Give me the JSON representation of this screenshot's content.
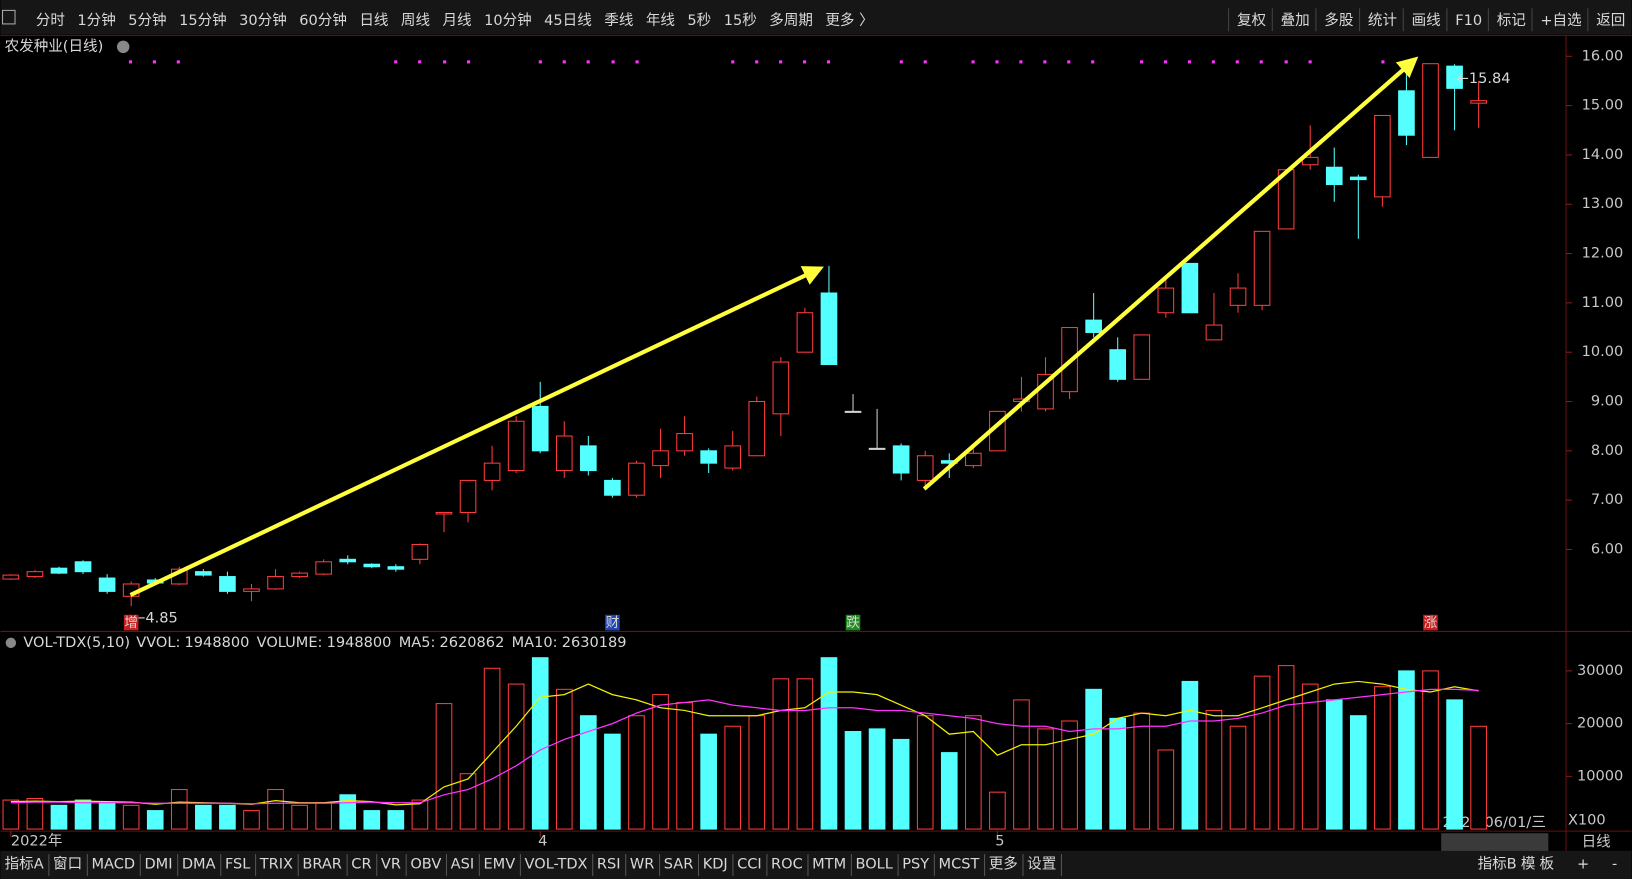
{
  "toolbar": {
    "left": [
      "分时",
      "1分钟",
      "5分钟",
      "15分钟",
      "30分钟",
      "60分钟",
      "日线",
      "周线",
      "月线",
      "10分钟",
      "45日线",
      "季线",
      "年线",
      "5秒",
      "15秒",
      "多周期",
      "更多 〉"
    ],
    "active": "日线",
    "right": [
      "复权",
      "叠加",
      "多股",
      "统计",
      "画线",
      "F10",
      "标记",
      "+自选",
      "返回"
    ]
  },
  "chart_data": [
    {
      "type": "candlestick",
      "title": "农发种业(日线)",
      "up_color": "#ff3c3c",
      "down_color": "#54ffff",
      "flat_color": "#d0d0d0",
      "categories": [
        "2022年",
        null,
        null,
        null,
        null,
        null,
        null,
        null,
        null,
        null,
        null,
        null,
        null,
        null,
        null,
        null,
        null,
        null,
        null,
        null,
        null,
        null,
        "4",
        null,
        null,
        null,
        null,
        null,
        null,
        null,
        null,
        null,
        null,
        null,
        null,
        null,
        null,
        null,
        null,
        null,
        null,
        "5",
        null,
        null,
        null,
        null,
        null,
        null,
        null,
        null,
        null,
        null,
        null,
        null,
        null,
        null,
        null,
        null,
        null,
        null,
        null,
        null
      ],
      "open": [
        5.4,
        5.45,
        5.62,
        5.75,
        5.42,
        5.05,
        5.38,
        5.3,
        5.55,
        5.45,
        5.15,
        5.2,
        5.45,
        5.5,
        5.8,
        5.7,
        5.65,
        5.8,
        6.72,
        6.75,
        7.4,
        7.6,
        8.9,
        7.6,
        8.1,
        7.4,
        7.1,
        7.7,
        8.0,
        8.0,
        7.65,
        7.9,
        8.75,
        10.0,
        11.2,
        8.8,
        8.05,
        8.1,
        7.4,
        7.8,
        7.7,
        8.0,
        9.0,
        8.85,
        9.2,
        10.65,
        10.05,
        9.45,
        10.8,
        11.8,
        10.25,
        10.95,
        10.95,
        12.5,
        13.8,
        13.75,
        13.55,
        13.15,
        15.3,
        13.95,
        15.8,
        15.05
      ],
      "high": [
        5.5,
        5.58,
        5.65,
        5.78,
        5.5,
        5.35,
        5.42,
        5.65,
        5.6,
        5.55,
        5.3,
        5.6,
        5.55,
        5.8,
        5.88,
        5.72,
        5.7,
        6.12,
        6.75,
        7.4,
        8.1,
        8.7,
        9.4,
        8.6,
        8.3,
        7.45,
        7.8,
        8.45,
        8.7,
        8.05,
        8.4,
        9.1,
        9.9,
        10.9,
        11.75,
        9.15,
        8.85,
        8.15,
        8.0,
        7.95,
        8.05,
        8.8,
        9.5,
        9.9,
        10.5,
        11.2,
        10.3,
        10.35,
        11.5,
        11.8,
        11.2,
        11.6,
        12.45,
        13.7,
        14.6,
        14.15,
        13.6,
        14.8,
        15.85,
        15.84,
        15.84,
        15.5
      ],
      "low": [
        5.38,
        5.42,
        5.5,
        5.5,
        5.1,
        4.85,
        5.28,
        5.28,
        5.45,
        5.1,
        4.95,
        5.18,
        5.42,
        5.48,
        5.7,
        5.62,
        5.55,
        5.7,
        6.35,
        6.55,
        7.2,
        7.55,
        7.95,
        7.45,
        7.5,
        7.05,
        7.05,
        7.45,
        7.9,
        7.55,
        7.6,
        7.9,
        8.3,
        10.0,
        9.75,
        8.8,
        8.05,
        7.4,
        7.2,
        7.45,
        7.65,
        8.0,
        8.8,
        8.8,
        9.05,
        10.3,
        9.4,
        9.45,
        10.7,
        10.8,
        10.25,
        10.8,
        10.85,
        12.5,
        13.7,
        13.05,
        12.3,
        12.95,
        14.2,
        13.95,
        14.5,
        14.55
      ],
      "close": [
        5.48,
        5.55,
        5.52,
        5.55,
        5.15,
        5.3,
        5.32,
        5.6,
        5.48,
        5.15,
        5.2,
        5.45,
        5.52,
        5.75,
        5.75,
        5.65,
        5.6,
        6.1,
        6.75,
        7.4,
        7.75,
        8.6,
        8.0,
        8.3,
        7.6,
        7.1,
        7.75,
        8.0,
        8.35,
        7.75,
        8.1,
        9.0,
        9.8,
        10.8,
        9.75,
        8.8,
        8.05,
        7.55,
        7.9,
        7.75,
        7.95,
        8.8,
        9.05,
        9.55,
        10.5,
        10.4,
        9.45,
        10.35,
        11.3,
        10.8,
        10.55,
        11.3,
        12.45,
        13.7,
        13.95,
        13.4,
        13.5,
        14.8,
        14.4,
        15.85,
        15.35,
        15.1
      ],
      "ylim": [
        4.38,
        16.34
      ],
      "yticks": [
        {
          "value": 6,
          "label": "6.00"
        },
        {
          "value": 7,
          "label": "7.00"
        },
        {
          "value": 8,
          "label": "8.00"
        },
        {
          "value": 9,
          "label": "9.00"
        },
        {
          "value": 10,
          "label": "10.00"
        },
        {
          "value": 11,
          "label": "11.00"
        },
        {
          "value": 12,
          "label": "12.00"
        },
        {
          "value": 13,
          "label": "13.00"
        },
        {
          "value": 14,
          "label": "14.00"
        },
        {
          "value": 15,
          "label": "15.00"
        },
        {
          "value": 16,
          "label": "16.00"
        }
      ],
      "annotations": [
        {
          "index": 5,
          "value": 4.85,
          "label": "←4.85"
        },
        {
          "index": 60,
          "value": 15.84,
          "label": "←15.84"
        }
      ],
      "events": [
        {
          "index": 5,
          "label": "增",
          "color": "#c81e1e"
        },
        {
          "index": 25,
          "label": "财",
          "color": "#1e46b4"
        },
        {
          "index": 35,
          "label": "跌",
          "color": "#1e8c1e"
        },
        {
          "index": 59,
          "label": "涨",
          "color": "#c81e1e"
        }
      ],
      "cursor_date": "2022/06/01/三",
      "period": "日线"
    },
    {
      "type": "volume",
      "title": "VOL-TDX(5,10)",
      "legend": [
        {
          "name": "VVOL:",
          "value": 1948800,
          "color": "#e6e6e6"
        },
        {
          "name": "VOLUME:",
          "value": 1948800,
          "color": "#f0f000"
        },
        {
          "name": "MA5:",
          "value": 2620862,
          "color": "#f0f000"
        },
        {
          "name": "MA10:",
          "value": 2630189,
          "color": "#ff32ff"
        }
      ],
      "values": [
        5500,
        5800,
        4500,
        5500,
        5000,
        4500,
        3500,
        7500,
        4500,
        4500,
        3500,
        7500,
        4500,
        5000,
        6500,
        3500,
        3500,
        5500,
        23800,
        10500,
        30500,
        27500,
        32500,
        26500,
        21500,
        18000,
        21500,
        25500,
        24000,
        18000,
        19500,
        21500,
        28500,
        28500,
        32500,
        18500,
        19000,
        17000,
        21500,
        14500,
        21500,
        7000,
        24500,
        19000,
        20500,
        26500,
        21000,
        22000,
        15000,
        28000,
        22500,
        19500,
        29000,
        31000,
        27500,
        24500,
        21500,
        27000,
        30000,
        30000,
        24500,
        19488
      ],
      "series": [
        {
          "name": "MA5",
          "color": "#f0f000",
          "values": [
            5200,
            5300,
            5200,
            5300,
            5200,
            5100,
            4700,
            5100,
            5000,
            4900,
            4700,
            5400,
            5000,
            5000,
            5400,
            5200,
            4600,
            4800,
            8000,
            9500,
            14500,
            19500,
            25000,
            25500,
            27500,
            25500,
            24500,
            23000,
            22500,
            21500,
            21500,
            21500,
            22500,
            23000,
            26000,
            26000,
            25500,
            23500,
            21500,
            18000,
            18500,
            14000,
            16000,
            16000,
            17000,
            18000,
            21000,
            22000,
            21500,
            22500,
            21500,
            21500,
            23000,
            24500,
            26000,
            27500,
            28000,
            27500,
            26500,
            26000,
            27000,
            26209
          ]
        },
        {
          "name": "MA10",
          "color": "#ff32ff",
          "values": [
            5000,
            5100,
            5100,
            5000,
            5000,
            5000,
            4900,
            4900,
            4900,
            4900,
            4800,
            4900,
            4900,
            4900,
            5000,
            5100,
            5000,
            5000,
            6500,
            7500,
            9500,
            12000,
            15000,
            17000,
            18500,
            20000,
            22000,
            23500,
            24000,
            24500,
            23500,
            23000,
            22500,
            22500,
            23000,
            23000,
            22500,
            22500,
            22000,
            21500,
            21000,
            20000,
            19500,
            19500,
            18500,
            19000,
            19000,
            19500,
            19500,
            20500,
            20500,
            21000,
            22000,
            23500,
            24000,
            24500,
            25000,
            25500,
            26000,
            26500,
            26500,
            26302
          ]
        }
      ],
      "ylim": [
        0,
        36500
      ],
      "yticks": [
        10000,
        20000,
        30000
      ],
      "unit": "X100"
    }
  ],
  "bottom_tabs": {
    "left": [
      "指标A",
      "窗口",
      "MACD",
      "DMI",
      "DMA",
      "FSL",
      "TRIX",
      "BRAR",
      "CR",
      "VR",
      "OBV",
      "ASI",
      "EMV",
      "VOL-TDX",
      "RSI",
      "WR",
      "SAR",
      "KDJ",
      "CCI",
      "ROC",
      "MTM",
      "BOLL",
      "PSY",
      "MCST",
      "更多",
      "设置"
    ],
    "active": "VOL-TDX",
    "right": [
      "指标B",
      "模",
      "板",
      "+",
      "-"
    ]
  }
}
